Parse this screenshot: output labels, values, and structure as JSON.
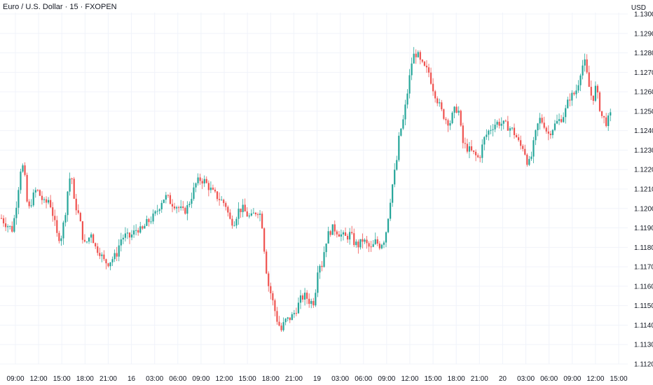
{
  "header": {
    "symbol_title": "Euro / U.S. Dollar · 15 · FXOPEN",
    "currency": "USD"
  },
  "colors": {
    "up": "#26a69a",
    "down": "#ef5350",
    "grid": "#f0f3fa",
    "axis_text": "#131722",
    "background": "#ffffff"
  },
  "chart_data": {
    "type": "candlestick",
    "x_ticks": [
      "09:00",
      "12:00",
      "15:00",
      "18:00",
      "21:00",
      "16",
      "03:00",
      "06:00",
      "09:00",
      "12:00",
      "15:00",
      "18:00",
      "21:00",
      "19",
      "03:00",
      "06:00",
      "09:00",
      "12:00",
      "15:00",
      "18:00",
      "21:00",
      "20",
      "03:00",
      "06:00",
      "09:00",
      "12:00",
      "15:00"
    ],
    "y_ticks": [
      "1.13000",
      "1.12900",
      "1.12800",
      "1.12700",
      "1.12600",
      "1.12500",
      "1.12400",
      "1.12300",
      "1.12200",
      "1.12100",
      "1.12000",
      "1.11900",
      "1.11800",
      "1.11700",
      "1.11600",
      "1.11500",
      "1.11400",
      "1.11300",
      "1.11200"
    ],
    "ylim": [
      1.112,
      1.13
    ],
    "grid": true,
    "path": [
      [
        0,
        1.1196
      ],
      [
        6,
        1.1193
      ],
      [
        12,
        1.1191
      ],
      [
        18,
        1.1189
      ],
      [
        24,
        1.1204
      ],
      [
        30,
        1.1222
      ],
      [
        34,
        1.1221
      ],
      [
        40,
        1.1198
      ],
      [
        46,
        1.1205
      ],
      [
        52,
        1.121
      ],
      [
        58,
        1.1206
      ],
      [
        64,
        1.1202
      ],
      [
        70,
        1.1205
      ],
      [
        76,
        1.1196
      ],
      [
        82,
        1.1185
      ],
      [
        88,
        1.1186
      ],
      [
        94,
        1.12
      ],
      [
        98,
        1.1214
      ],
      [
        102,
        1.1218
      ],
      [
        106,
        1.1202
      ],
      [
        110,
        1.12
      ],
      [
        116,
        1.119
      ],
      [
        120,
        1.1181
      ],
      [
        126,
        1.1184
      ],
      [
        130,
        1.1188
      ],
      [
        136,
        1.118
      ],
      [
        142,
        1.1178
      ],
      [
        148,
        1.1173
      ],
      [
        154,
        1.1172
      ],
      [
        160,
        1.1174
      ],
      [
        166,
        1.1176
      ],
      [
        172,
        1.1184
      ],
      [
        178,
        1.1186
      ],
      [
        184,
        1.1185
      ],
      [
        190,
        1.1187
      ],
      [
        196,
        1.119
      ],
      [
        202,
        1.1188
      ],
      [
        208,
        1.1192
      ],
      [
        214,
        1.1194
      ],
      [
        220,
        1.1196
      ],
      [
        226,
        1.12
      ],
      [
        232,
        1.1205
      ],
      [
        238,
        1.1206
      ],
      [
        244,
        1.1203
      ],
      [
        250,
        1.1202
      ],
      [
        256,
        1.12
      ],
      [
        262,
        1.1198
      ],
      [
        268,
        1.1201
      ],
      [
        274,
        1.1207
      ],
      [
        280,
        1.1213
      ],
      [
        286,
        1.1215
      ],
      [
        292,
        1.1214
      ],
      [
        298,
        1.1211
      ],
      [
        304,
        1.1208
      ],
      [
        310,
        1.1206
      ],
      [
        316,
        1.1204
      ],
      [
        322,
        1.1202
      ],
      [
        328,
        1.1194
      ],
      [
        334,
        1.1193
      ],
      [
        340,
        1.1199
      ],
      [
        346,
        1.12
      ],
      [
        352,
        1.1197
      ],
      [
        358,
        1.1195
      ],
      [
        364,
        1.1198
      ],
      [
        370,
        1.1199
      ],
      [
        374,
        1.1192
      ],
      [
        378,
        1.1176
      ],
      [
        382,
        1.1162
      ],
      [
        386,
        1.1157
      ],
      [
        390,
        1.1151
      ],
      [
        396,
        1.1142
      ],
      [
        402,
        1.1137
      ],
      [
        406,
        1.1142
      ],
      [
        412,
        1.1143
      ],
      [
        418,
        1.1145
      ],
      [
        424,
        1.1149
      ],
      [
        430,
        1.1154
      ],
      [
        436,
        1.1155
      ],
      [
        442,
        1.1152
      ],
      [
        448,
        1.1152
      ],
      [
        452,
        1.1163
      ],
      [
        454,
        1.1172
      ],
      [
        460,
        1.1171
      ],
      [
        464,
        1.1182
      ],
      [
        470,
        1.1188
      ],
      [
        476,
        1.119
      ],
      [
        482,
        1.1188
      ],
      [
        488,
        1.1186
      ],
      [
        494,
        1.1185
      ],
      [
        500,
        1.1187
      ],
      [
        506,
        1.1182
      ],
      [
        512,
        1.1181
      ],
      [
        518,
        1.1184
      ],
      [
        524,
        1.1181
      ],
      [
        530,
        1.1179
      ],
      [
        536,
        1.1183
      ],
      [
        542,
        1.1181
      ],
      [
        548,
        1.1184
      ],
      [
        552,
        1.119
      ],
      [
        556,
        1.1202
      ],
      [
        560,
        1.1212
      ],
      [
        566,
        1.1224
      ],
      [
        570,
        1.1238
      ],
      [
        576,
        1.1246
      ],
      [
        580,
        1.1256
      ],
      [
        584,
        1.1266
      ],
      [
        588,
        1.1276
      ],
      [
        592,
        1.128
      ],
      [
        596,
        1.1279
      ],
      [
        600,
        1.1275
      ],
      [
        606,
        1.1272
      ],
      [
        612,
        1.127
      ],
      [
        618,
        1.1262
      ],
      [
        624,
        1.1256
      ],
      [
        630,
        1.125
      ],
      [
        636,
        1.1246
      ],
      [
        642,
        1.1244
      ],
      [
        648,
        1.125
      ],
      [
        654,
        1.1252
      ],
      [
        660,
        1.1234
      ],
      [
        664,
        1.1232
      ],
      [
        670,
        1.123
      ],
      [
        676,
        1.1228
      ],
      [
        682,
        1.1226
      ],
      [
        686,
        1.1228
      ],
      [
        690,
        1.1235
      ],
      [
        696,
        1.1239
      ],
      [
        702,
        1.1242
      ],
      [
        708,
        1.1244
      ],
      [
        714,
        1.1244
      ],
      [
        720,
        1.1243
      ],
      [
        726,
        1.1242
      ],
      [
        732,
        1.124
      ],
      [
        738,
        1.1236
      ],
      [
        742,
        1.1232
      ],
      [
        746,
        1.1232
      ],
      [
        750,
        1.1228
      ],
      [
        754,
        1.1222
      ],
      [
        758,
        1.1226
      ],
      [
        762,
        1.1234
      ],
      [
        766,
        1.1241
      ],
      [
        770,
        1.1246
      ],
      [
        776,
        1.1244
      ],
      [
        782,
        1.1238
      ],
      [
        788,
        1.1241
      ],
      [
        794,
        1.1244
      ],
      [
        800,
        1.1246
      ],
      [
        806,
        1.1249
      ],
      [
        810,
        1.1254
      ],
      [
        814,
        1.1258
      ],
      [
        818,
        1.1258
      ],
      [
        824,
        1.1262
      ],
      [
        828,
        1.127
      ],
      [
        834,
        1.1276
      ],
      [
        838,
        1.1268
      ],
      [
        842,
        1.126
      ],
      [
        846,
        1.1256
      ],
      [
        850,
        1.1262
      ],
      [
        854,
        1.1256
      ],
      [
        858,
        1.1248
      ],
      [
        862,
        1.1246
      ],
      [
        866,
        1.1244
      ],
      [
        870,
        1.1247
      ],
      [
        874,
        1.1249
      ]
    ]
  }
}
